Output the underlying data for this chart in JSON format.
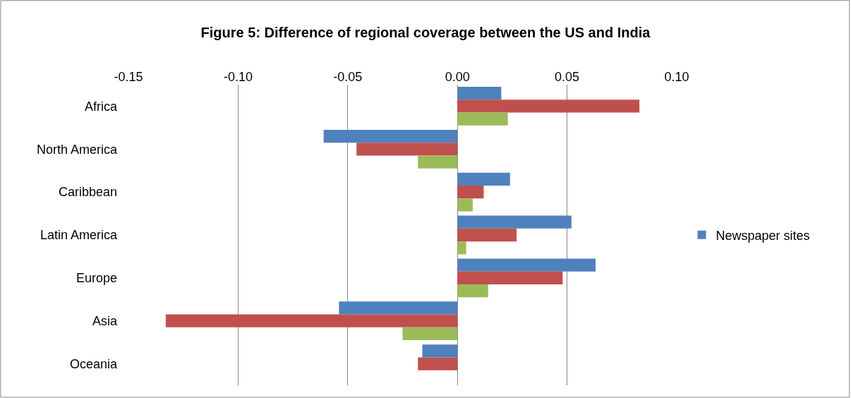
{
  "chart_data": {
    "type": "bar",
    "orientation": "horizontal",
    "title": "Figure 5: Difference of regional coverage between the US and India",
    "categories": [
      "Africa",
      "North America",
      "Caribbean",
      "Latin America",
      "Europe",
      "Asia",
      "Oceania"
    ],
    "series": [
      {
        "name": "Newspaper sites",
        "color": "#4f81bd",
        "values": [
          0.02,
          -0.061,
          0.024,
          0.052,
          0.063,
          -0.054,
          -0.016
        ]
      },
      {
        "color": "#c0504d",
        "values": [
          0.083,
          -0.046,
          0.012,
          0.027,
          0.048,
          -0.133,
          -0.018
        ]
      },
      {
        "color": "#9bbb59",
        "values": [
          0.023,
          -0.018,
          0.007,
          0.004,
          0.014,
          -0.025,
          null
        ]
      }
    ],
    "xlim": [
      -0.15,
      0.1
    ],
    "xticks": [
      {
        "value": -0.15,
        "label": "-0.15"
      },
      {
        "value": -0.1,
        "label": "-0.10"
      },
      {
        "value": -0.05,
        "label": "-0.05"
      },
      {
        "value": 0,
        "label": "0.00"
      },
      {
        "value": 0.05,
        "label": "0.05"
      },
      {
        "value": 0.1,
        "label": "0.10"
      }
    ],
    "grid": "x",
    "legend": "right"
  }
}
